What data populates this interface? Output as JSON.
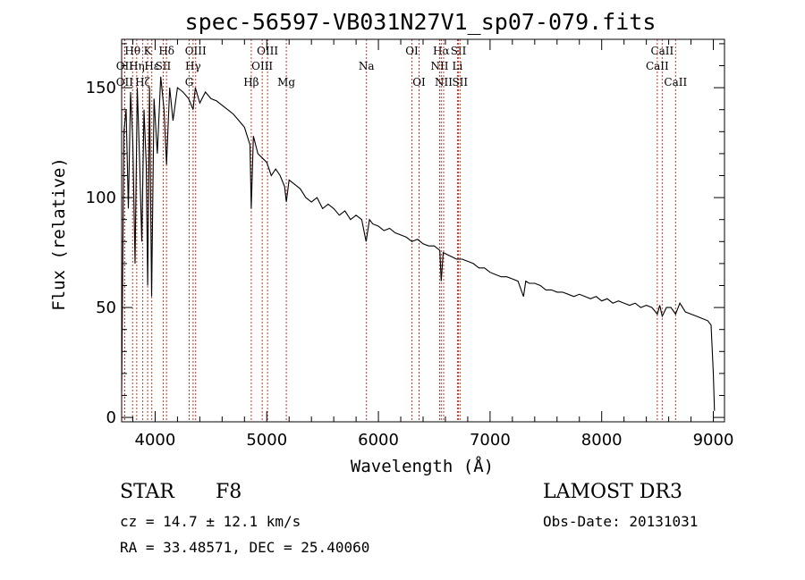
{
  "chart_data": {
    "type": "line",
    "title": "spec-56597-VB031N27V1_sp07-079.fits",
    "xlabel": "Wavelength (Å)",
    "ylabel": "Flux (relative)",
    "xlim": [
      3700,
      9100
    ],
    "ylim": [
      -2,
      172
    ],
    "xticks": [
      4000,
      5000,
      6000,
      7000,
      8000,
      9000
    ],
    "yticks": [
      0,
      50,
      100,
      150
    ],
    "x": [
      3700,
      3720,
      3740,
      3760,
      3780,
      3800,
      3820,
      3840,
      3860,
      3880,
      3900,
      3920,
      3933,
      3950,
      3968,
      3990,
      4020,
      4050,
      4080,
      4102,
      4130,
      4160,
      4200,
      4250,
      4300,
      4340,
      4360,
      4400,
      4450,
      4500,
      4550,
      4600,
      4650,
      4700,
      4750,
      4800,
      4850,
      4861,
      4880,
      4920,
      4960,
      5000,
      5040,
      5080,
      5120,
      5160,
      5175,
      5200,
      5250,
      5300,
      5350,
      5400,
      5450,
      5500,
      5550,
      5600,
      5650,
      5700,
      5750,
      5800,
      5850,
      5890,
      5920,
      5950,
      6000,
      6050,
      6100,
      6150,
      6200,
      6250,
      6300,
      6350,
      6400,
      6450,
      6500,
      6550,
      6563,
      6580,
      6620,
      6660,
      6700,
      6750,
      6800,
      6850,
      6900,
      6950,
      7000,
      7050,
      7100,
      7150,
      7200,
      7250,
      7300,
      7320,
      7350,
      7400,
      7450,
      7500,
      7550,
      7600,
      7650,
      7700,
      7750,
      7800,
      7850,
      7900,
      7950,
      8000,
      8050,
      8100,
      8150,
      8200,
      8250,
      8300,
      8350,
      8400,
      8450,
      8498,
      8520,
      8542,
      8580,
      8620,
      8662,
      8700,
      8750,
      8800,
      8850,
      8900,
      8950,
      8980,
      9000,
      9010
    ],
    "y": [
      12,
      130,
      140,
      95,
      148,
      125,
      70,
      150,
      118,
      80,
      140,
      115,
      60,
      150,
      55,
      145,
      120,
      155,
      140,
      115,
      150,
      135,
      150,
      148,
      145,
      140,
      150,
      143,
      148,
      145,
      144,
      142,
      140,
      138,
      135,
      132,
      124,
      95,
      128,
      120,
      118,
      116,
      110,
      113,
      110,
      105,
      98,
      108,
      106,
      104,
      100,
      98,
      100,
      95,
      97,
      95,
      92,
      94,
      90,
      92,
      90,
      80,
      90,
      88,
      87,
      85,
      86,
      84,
      83,
      82,
      80,
      81,
      79,
      78,
      78,
      76,
      62,
      75,
      74,
      73,
      72,
      72,
      71,
      70,
      68,
      68,
      66,
      65,
      64,
      64,
      63,
      62,
      55,
      62,
      61,
      61,
      60,
      58,
      58,
      57,
      57,
      56,
      55,
      56,
      55,
      54,
      55,
      53,
      54,
      52,
      53,
      52,
      51,
      52,
      50,
      51,
      50,
      47,
      51,
      46,
      50,
      50,
      47,
      52,
      48,
      47,
      46,
      45,
      44,
      42,
      20,
      3
    ],
    "spectral_lines": [
      {
        "label": "Hθ",
        "wave": 3798,
        "row": 1
      },
      {
        "label": "Hη",
        "wave": 3835,
        "row": 2
      },
      {
        "label": "OII",
        "wave": 3727,
        "row": 2
      },
      {
        "label": "OII",
        "wave": 3727,
        "row": 3
      },
      {
        "label": "Hζ",
        "wave": 3889,
        "row": 3
      },
      {
        "label": "K",
        "wave": 3933,
        "row": 1
      },
      {
        "label": "Hε",
        "wave": 3970,
        "row": 2
      },
      {
        "label": "SII",
        "wave": 4072,
        "row": 2
      },
      {
        "label": "Hδ",
        "wave": 4102,
        "row": 1
      },
      {
        "label": "OIII",
        "wave": 4363,
        "row": 1
      },
      {
        "label": "Hγ",
        "wave": 4340,
        "row": 2
      },
      {
        "label": "G",
        "wave": 4305,
        "row": 3
      },
      {
        "label": "OIII",
        "wave": 5007,
        "row": 1
      },
      {
        "label": "OIII",
        "wave": 4959,
        "row": 2
      },
      {
        "label": "Hβ",
        "wave": 4861,
        "row": 3
      },
      {
        "label": "Mg",
        "wave": 5175,
        "row": 3
      },
      {
        "label": "Na",
        "wave": 5893,
        "row": 2
      },
      {
        "label": "OI",
        "wave": 6300,
        "row": 1
      },
      {
        "label": "OI",
        "wave": 6364,
        "row": 3
      },
      {
        "label": "Hα",
        "wave": 6563,
        "row": 1
      },
      {
        "label": "NII",
        "wave": 6548,
        "row": 2
      },
      {
        "label": "NII",
        "wave": 6584,
        "row": 3
      },
      {
        "label": "SII",
        "wave": 6717,
        "row": 1
      },
      {
        "label": "Li",
        "wave": 6708,
        "row": 2
      },
      {
        "label": "SII",
        "wave": 6731,
        "row": 3
      },
      {
        "label": "CaII",
        "wave": 8542,
        "row": 1
      },
      {
        "label": "CaII",
        "wave": 8498,
        "row": 2
      },
      {
        "label": "CaII",
        "wave": 8662,
        "row": 3
      }
    ]
  },
  "info": {
    "class": "STAR",
    "subclass": "F8",
    "survey": "LAMOST DR3",
    "cz": "cz = 14.7 ± 12.1 km/s",
    "obs_date": "Obs-Date: 20131031",
    "coords": "RA =  33.48571, DEC =  25.40060"
  }
}
